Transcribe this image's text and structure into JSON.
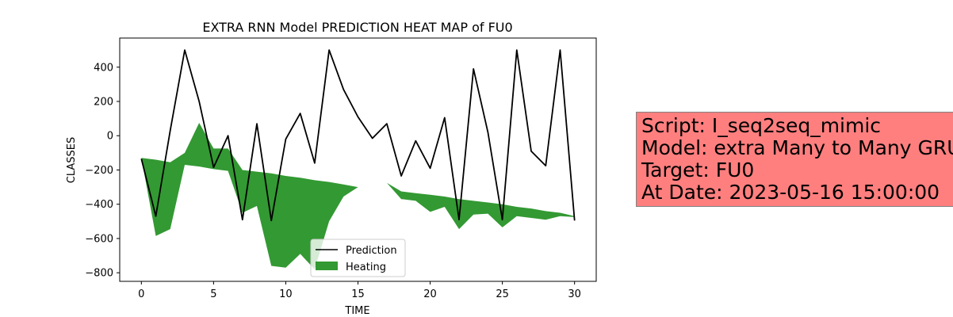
{
  "chart_data": {
    "type": "line",
    "title": "EXTRA RNN Model PREDICTION HEAT MAP of FU0",
    "xlabel": "TIME",
    "ylabel": "CLASSES",
    "xlim": [
      -1.5,
      31.5
    ],
    "ylim": [
      -850,
      570
    ],
    "xticks": [
      0,
      5,
      10,
      15,
      20,
      25,
      30
    ],
    "yticks": [
      -800,
      -600,
      -400,
      -200,
      0,
      200,
      400
    ],
    "grid": false,
    "legend_position": "lower center",
    "series": [
      {
        "name": "Prediction",
        "kind": "line",
        "color": "#000000",
        "x": [
          0,
          1,
          2,
          3,
          4,
          5,
          6,
          7,
          8,
          9,
          10,
          11,
          12,
          13,
          14,
          15,
          16,
          17,
          18,
          19,
          20,
          21,
          22,
          23,
          24,
          25,
          26,
          27,
          28,
          29,
          30
        ],
        "y": [
          -135,
          -470,
          30,
          500,
          200,
          -185,
          0,
          -490,
          70,
          -495,
          -20,
          130,
          -160,
          500,
          270,
          110,
          -15,
          70,
          -235,
          -30,
          -190,
          105,
          -490,
          390,
          20,
          -490,
          500,
          -90,
          -175,
          500,
          -495
        ]
      },
      {
        "name": "Heating",
        "kind": "fill_between",
        "color": "#008000",
        "opacity": 0.8,
        "x": [
          0,
          1,
          2,
          3,
          4,
          5,
          6,
          7,
          8,
          9,
          10,
          11,
          12,
          13,
          14,
          15,
          16,
          17,
          18,
          19,
          20,
          21,
          22,
          23,
          24,
          25,
          26,
          27,
          28,
          29,
          30
        ],
        "y_upper": [
          -130,
          -140,
          -155,
          -100,
          75,
          -75,
          -75,
          -200,
          -210,
          -220,
          -235,
          -245,
          -260,
          -270,
          -285,
          -300,
          -305,
          -275,
          -325,
          -335,
          -345,
          -355,
          -370,
          -380,
          -390,
          -400,
          -415,
          -425,
          -440,
          -450,
          -470
        ],
        "y_lower": [
          -130,
          -585,
          -545,
          -170,
          -180,
          -195,
          -205,
          -450,
          -410,
          -760,
          -770,
          -690,
          -780,
          -500,
          -355,
          -300,
          -305,
          -275,
          -370,
          -380,
          -445,
          -415,
          -545,
          -460,
          -455,
          -535,
          -470,
          -480,
          -490,
          -470,
          -475
        ]
      }
    ]
  },
  "info_box": {
    "line1": "Script: I_seq2seq_mimic",
    "line2": "Model: extra Many to Many GRU",
    "line3": "Target: FU0",
    "line4": "At Date: 2023-05-16 15:00:00"
  }
}
